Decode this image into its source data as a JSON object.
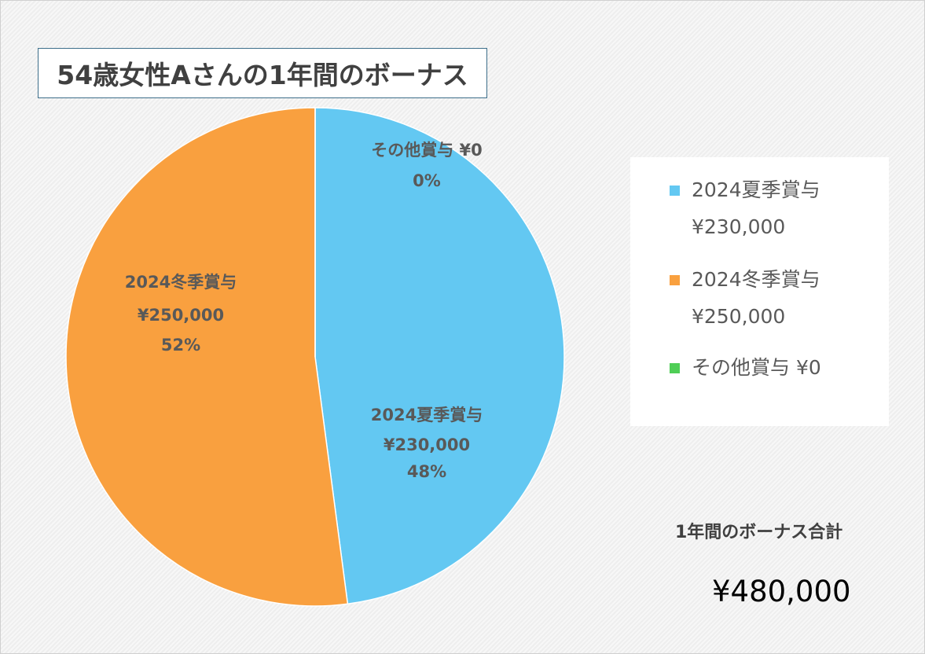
{
  "title": "54歳女性Aさんの1年間のボーナス",
  "chart_data": {
    "type": "pie",
    "categories": [
      "2024夏季賞与",
      "2024冬季賞与",
      "その他賞与"
    ],
    "values": [
      230000,
      250000,
      0
    ],
    "value_labels": [
      "¥230,000",
      "¥250,000",
      "¥0"
    ],
    "percent_labels": [
      "48%",
      "52%",
      "0%"
    ],
    "colors": [
      "#63c8f2",
      "#f9a03f",
      "#4fce56"
    ],
    "legend_position": "right",
    "slice_labels": [
      {
        "name": "2024夏季賞与",
        "value": "¥230,000",
        "percent": "48%"
      },
      {
        "name": "2024冬季賞与",
        "value": "¥250,000",
        "percent": "52%"
      },
      {
        "name_value": "その他賞与 ¥0",
        "percent": "0%"
      }
    ],
    "legend": [
      {
        "name": "2024夏季賞与",
        "value": "¥230,000",
        "color": "#63c8f2"
      },
      {
        "name": "2024冬季賞与",
        "value": "¥250,000",
        "color": "#f9a03f"
      },
      {
        "name_value": "その他賞与 ¥0",
        "color": "#4fce56"
      }
    ]
  },
  "total": {
    "label": "1年間のボーナス合計",
    "value": "¥480,000"
  }
}
